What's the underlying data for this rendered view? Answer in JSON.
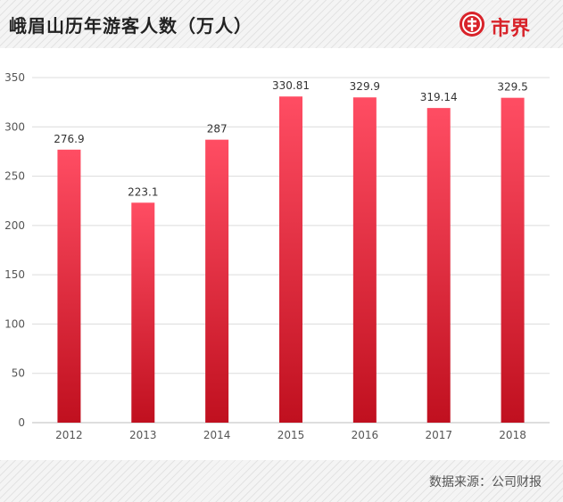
{
  "header": {
    "title": "峨眉山历年游客人数（万人）",
    "logo_text": "市界"
  },
  "footer": {
    "source": "数据来源：公司财报"
  },
  "colors": {
    "bar_top": "#ff4d63",
    "bar_bottom": "#c0101f",
    "brand": "#d8232a"
  },
  "chart_data": {
    "type": "bar",
    "title": "峨眉山历年游客人数（万人）",
    "categories": [
      "2012",
      "2013",
      "2014",
      "2015",
      "2016",
      "2017",
      "2018"
    ],
    "values": [
      276.9,
      223.1,
      287,
      330.81,
      329.9,
      319.14,
      329.5
    ],
    "value_labels": [
      "276.9",
      "223.1",
      "287",
      "330.81",
      "329.9",
      "319.14",
      "329.5"
    ],
    "ylim": [
      0,
      350
    ],
    "yticks": [
      0,
      50,
      100,
      150,
      200,
      250,
      300,
      350
    ],
    "grid": true,
    "xlabel": "",
    "ylabel": ""
  }
}
